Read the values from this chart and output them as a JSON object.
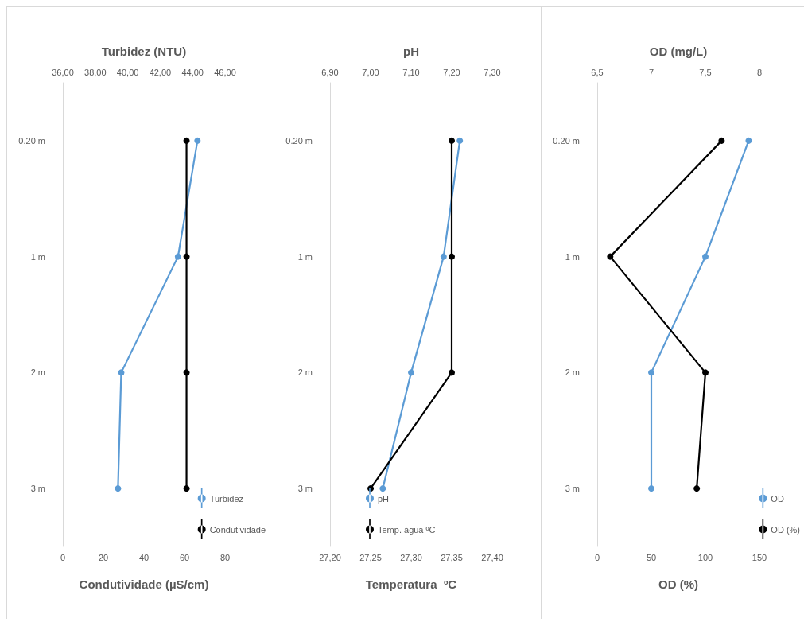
{
  "chart_data": [
    {
      "type": "line",
      "orientation": "horizontal",
      "categories": [
        "0.20 m",
        "1 m",
        "2 m",
        "3 m"
      ],
      "marker": "circle",
      "line_style": "solid",
      "grid": false,
      "legend": "bottom right",
      "x2label": "Turbidez (NTU)",
      "xlabel": "Condutividade (µS/cm)",
      "x2lim": [
        36,
        46
      ],
      "x2ticks": [
        {
          "value": 36,
          "label": "36,00"
        },
        {
          "value": 38,
          "label": "38,00"
        },
        {
          "value": 40,
          "label": "40,00"
        },
        {
          "value": 42,
          "label": "42,00"
        },
        {
          "value": 44,
          "label": "44,00"
        },
        {
          "value": 46,
          "label": "46,00"
        }
      ],
      "xlim": [
        0,
        80
      ],
      "xticks": [
        0,
        20,
        40,
        60,
        80
      ],
      "series": [
        {
          "name": "Turbidez",
          "color": "#5b9bd5",
          "axis": "x2",
          "values": [
            44.3,
            43.1,
            39.6,
            39.4
          ]
        },
        {
          "name": "Condutividade",
          "color": "#000000",
          "values": [
            61,
            61,
            61,
            61
          ]
        }
      ]
    },
    {
      "type": "line",
      "orientation": "horizontal",
      "categories": [
        "0.20 m",
        "1 m",
        "2 m",
        "3 m"
      ],
      "marker": "circle",
      "line_style": "solid",
      "grid": false,
      "legend": "bottom left",
      "x2label": "pH",
      "xlabel": "Temperatura  ºC",
      "x2lim": [
        6.9,
        7.3
      ],
      "x2ticks": [
        {
          "value": 6.9,
          "label": "6,90"
        },
        {
          "value": 7.0,
          "label": "7,00"
        },
        {
          "value": 7.1,
          "label": "7,10"
        },
        {
          "value": 7.2,
          "label": "7,20"
        },
        {
          "value": 7.3,
          "label": "7,30"
        }
      ],
      "xlim": [
        27.2,
        27.4
      ],
      "xticks": [
        {
          "value": 27.2,
          "label": "27,20"
        },
        {
          "value": 27.25,
          "label": "27,25"
        },
        {
          "value": 27.3,
          "label": "27,30"
        },
        {
          "value": 27.35,
          "label": "27,35"
        },
        {
          "value": 27.4,
          "label": "27,40"
        }
      ],
      "series": [
        {
          "name": "pH",
          "color": "#5b9bd5",
          "axis": "x2",
          "values": [
            7.22,
            7.18,
            7.1,
            7.03
          ]
        },
        {
          "name": "Temp. água ºC",
          "color": "#000000",
          "values": [
            27.35,
            27.35,
            27.35,
            27.25
          ]
        }
      ]
    },
    {
      "type": "line",
      "orientation": "horizontal",
      "categories": [
        "0.20 m",
        "1 m",
        "2 m",
        "3 m"
      ],
      "marker": "circle",
      "line_style": "solid",
      "grid": false,
      "legend": "bottom right",
      "x2label": "OD (mg/L)",
      "xlabel": "OD (%)",
      "x2lim": [
        6.5,
        8
      ],
      "x2ticks": [
        {
          "value": 6.5,
          "label": "6,5"
        },
        7,
        {
          "value": 7.5,
          "label": "7,5"
        },
        8
      ],
      "xlim": [
        0,
        150
      ],
      "xticks": [
        0,
        50,
        100,
        150
      ],
      "series": [
        {
          "name": "OD",
          "color": "#5b9bd5",
          "axis": "x2",
          "values": [
            7.9,
            7.5,
            7.0,
            7.0
          ]
        },
        {
          "name": "OD (%)",
          "color": "#000000",
          "values": [
            115,
            12,
            100,
            92
          ]
        }
      ]
    }
  ]
}
